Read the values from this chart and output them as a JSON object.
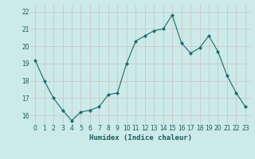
{
  "x": [
    0,
    1,
    2,
    3,
    4,
    5,
    6,
    7,
    8,
    9,
    10,
    11,
    12,
    13,
    14,
    15,
    16,
    17,
    18,
    19,
    20,
    21,
    22,
    23
  ],
  "y": [
    19.2,
    18.0,
    17.0,
    16.3,
    15.7,
    16.2,
    16.3,
    16.5,
    17.2,
    17.3,
    19.0,
    20.3,
    20.6,
    20.9,
    21.0,
    21.8,
    20.2,
    19.6,
    19.9,
    20.6,
    19.7,
    18.3,
    17.3,
    16.5
  ],
  "line_color": "#1a6b6b",
  "marker": "D",
  "marker_size": 2,
  "bg_color": "#cceae8",
  "grid_color_minor": "#c8b8b8",
  "grid_color_major": "#c8b8b8",
  "xlabel": "Humidex (Indice chaleur)",
  "ylim": [
    15.5,
    22.4
  ],
  "xlim": [
    -0.5,
    23.5
  ],
  "yticks": [
    16,
    17,
    18,
    19,
    20,
    21,
    22
  ],
  "xticks": [
    0,
    1,
    2,
    3,
    4,
    5,
    6,
    7,
    8,
    9,
    10,
    11,
    12,
    13,
    14,
    15,
    16,
    17,
    18,
    19,
    20,
    21,
    22,
    23
  ],
  "tick_color": "#1a5c5c",
  "label_fontsize": 6.5,
  "tick_fontsize": 5.5
}
